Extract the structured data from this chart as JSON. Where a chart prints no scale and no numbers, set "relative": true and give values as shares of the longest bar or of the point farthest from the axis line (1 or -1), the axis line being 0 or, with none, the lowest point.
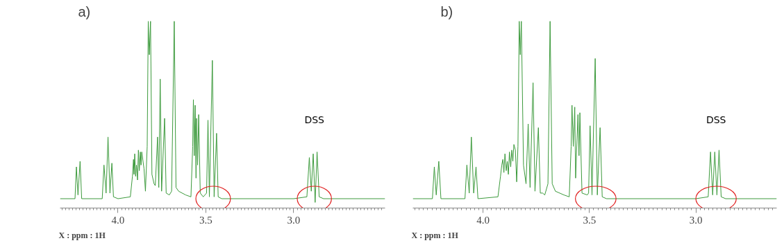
{
  "chart_data": [
    {
      "type": "line",
      "title": "a)",
      "xlabel": "X : ppm : 1H",
      "relative": true,
      "tick_labels": "x",
      "xlim": [
        4.33,
        2.48
      ],
      "xticks": [
        {
          "value": 4.0,
          "label": "4.0"
        },
        {
          "value": 3.5,
          "label": "3.5"
        },
        {
          "value": 3.0,
          "label": "3.0"
        }
      ],
      "x": [
        4.33,
        4.245,
        4.237,
        4.228,
        4.216,
        4.207,
        4.09,
        4.08,
        4.068,
        4.057,
        4.046,
        4.035,
        4.026,
        4.0,
        3.93,
        3.918,
        3.912,
        3.909,
        3.905,
        3.9,
        3.895,
        3.889,
        3.884,
        3.879,
        3.873,
        3.869,
        3.865,
        3.852,
        3.844,
        3.834,
        3.828,
        3.822,
        3.815,
        3.807,
        3.795,
        3.788,
        3.775,
        3.768,
        3.76,
        3.752,
        3.735,
        3.726,
        3.708,
        3.695,
        3.68,
        3.67,
        3.655,
        3.615,
        3.585,
        3.575,
        3.571,
        3.566,
        3.561,
        3.556,
        3.553,
        3.547,
        3.541,
        3.532,
        3.515,
        3.496,
        3.488,
        3.48,
        3.463,
        3.453,
        3.439,
        3.43,
        3.41,
        3.0,
        2.925,
        2.911,
        2.9,
        2.889,
        2.878,
        2.867,
        2.855,
        2.83,
        2.48
      ],
      "series": [
        {
          "color": "#3c9a3c",
          "values": [
            0.05,
            0.05,
            0.22,
            0.07,
            0.25,
            0.05,
            0.05,
            0.23,
            0.08,
            0.38,
            0.08,
            0.24,
            0.06,
            0.05,
            0.06,
            0.17,
            0.26,
            0.18,
            0.29,
            0.17,
            0.23,
            0.15,
            0.31,
            0.2,
            0.3,
            0.23,
            0.3,
            0.21,
            0.09,
            0.33,
            1.0,
            0.82,
            1.0,
            0.18,
            0.13,
            0.12,
            0.38,
            0.11,
            0.69,
            0.09,
            0.48,
            0.08,
            0.07,
            0.09,
            1.0,
            0.11,
            0.09,
            0.07,
            0.06,
            0.33,
            0.58,
            0.28,
            0.55,
            0.16,
            0.48,
            0.23,
            0.5,
            0.08,
            0.06,
            0.08,
            0.47,
            0.06,
            0.79,
            0.06,
            0.4,
            0.06,
            0.05,
            0.05,
            0.06,
            0.27,
            0.09,
            0.29,
            0.03,
            0.3,
            0.06,
            0.05,
            0.05
          ]
        }
      ],
      "annotations": [
        "DSS"
      ]
    },
    {
      "type": "line",
      "title": "b)",
      "xlabel": "X : ppm : 1H",
      "relative": true,
      "tick_labels": "x",
      "xlim": [
        4.33,
        2.62
      ],
      "xticks": [
        {
          "value": 4.0,
          "label": "4.0"
        },
        {
          "value": 3.5,
          "label": "3.5"
        },
        {
          "value": 3.0,
          "label": "3.0"
        }
      ],
      "x": [
        4.33,
        4.238,
        4.229,
        4.22,
        4.208,
        4.198,
        4.085,
        4.076,
        4.065,
        4.055,
        4.044,
        4.033,
        4.024,
        3.93,
        3.918,
        3.912,
        3.907,
        3.902,
        3.897,
        3.891,
        3.886,
        3.881,
        3.876,
        3.87,
        3.865,
        3.86,
        3.855,
        3.848,
        3.842,
        3.836,
        3.83,
        3.825,
        3.82,
        3.81,
        3.798,
        3.788,
        3.779,
        3.765,
        3.756,
        3.74,
        3.731,
        3.72,
        3.71,
        3.695,
        3.685,
        3.675,
        3.66,
        3.62,
        3.595,
        3.586,
        3.582,
        3.576,
        3.569,
        3.565,
        3.554,
        3.549,
        3.545,
        3.535,
        3.51,
        3.504,
        3.497,
        3.488,
        3.473,
        3.463,
        3.45,
        3.44,
        3.42,
        3.0,
        2.942,
        2.931,
        2.921,
        2.911,
        2.901,
        2.891,
        2.881,
        2.86,
        2.62
      ],
      "series": [
        {
          "color": "#3c9a3c",
          "values": [
            0.05,
            0.05,
            0.22,
            0.07,
            0.25,
            0.05,
            0.05,
            0.23,
            0.08,
            0.38,
            0.08,
            0.22,
            0.05,
            0.06,
            0.17,
            0.23,
            0.26,
            0.19,
            0.29,
            0.2,
            0.25,
            0.18,
            0.3,
            0.22,
            0.31,
            0.25,
            0.34,
            0.31,
            0.14,
            0.33,
            1.0,
            0.82,
            1.0,
            0.23,
            0.13,
            0.45,
            0.11,
            0.67,
            0.09,
            0.43,
            0.08,
            0.08,
            0.07,
            0.13,
            1.0,
            0.13,
            0.09,
            0.07,
            0.06,
            0.33,
            0.55,
            0.33,
            0.54,
            0.16,
            0.5,
            0.28,
            0.51,
            0.08,
            0.07,
            0.08,
            0.44,
            0.07,
            0.8,
            0.07,
            0.43,
            0.06,
            0.05,
            0.05,
            0.06,
            0.3,
            0.07,
            0.3,
            0.07,
            0.31,
            0.06,
            0.05,
            0.05
          ]
        }
      ],
      "annotations": [
        "DSS"
      ]
    }
  ]
}
